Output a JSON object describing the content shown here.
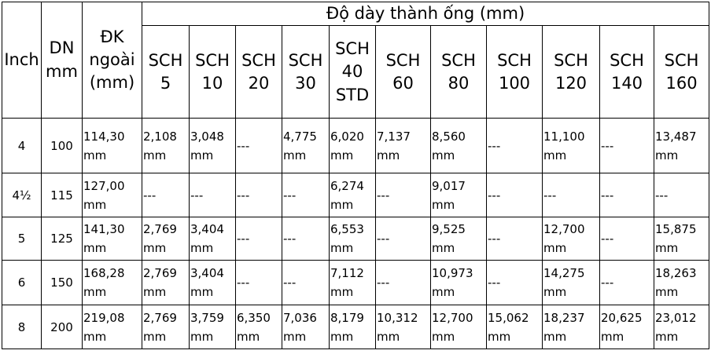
{
  "table": {
    "header": {
      "inch": "Inch",
      "dn": "DN mm",
      "dk": "ĐK ngoài (mm)",
      "group": "Độ dày thành ống (mm)"
    },
    "schedules": [
      "SCH 5",
      "SCH 10",
      "SCH 20",
      "SCH 30",
      "SCH 40 STD",
      "SCH 60",
      "SCH 80",
      "SCH 100",
      "SCH 120",
      "SCH 140",
      "SCH 160"
    ],
    "rows": [
      [
        "4",
        "100",
        "114,30 mm",
        "2,108 mm",
        "3,048 mm",
        "---",
        "4,775 mm",
        "6,020 mm",
        "7,137 mm",
        "8,560 mm",
        "---",
        "11,100 mm",
        "---",
        "13,487 mm"
      ],
      [
        "4½",
        "115",
        "127,00 mm",
        "---",
        "---",
        "---",
        "---",
        "6,274 mm",
        "---",
        "9,017 mm",
        "---",
        "---",
        "---",
        "---"
      ],
      [
        "5",
        "125",
        "141,30 mm",
        "2,769 mm",
        "3,404 mm",
        "---",
        "---",
        "6,553 mm",
        "---",
        "9,525 mm",
        "---",
        "12,700 mm",
        "---",
        "15,875 mm"
      ],
      [
        "6",
        "150",
        "168,28 mm",
        "2,769 mm",
        "3,404 mm",
        "---",
        "---",
        "7,112 mm",
        "---",
        "10,973 mm",
        "---",
        "14,275 mm",
        "---",
        "18,263 mm"
      ],
      [
        "8",
        "200",
        "219,08 mm",
        "2,769 mm",
        "3,759 mm",
        "6,350 mm",
        "7,036 mm",
        "8,179 mm",
        "10,312 mm",
        "12,700 mm",
        "15,062 mm",
        "18,237 mm",
        "20,625 mm",
        "23,012 mm"
      ]
    ]
  }
}
